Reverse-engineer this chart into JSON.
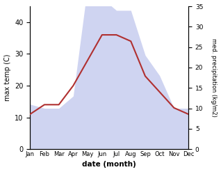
{
  "months": [
    "Jan",
    "Feb",
    "Mar",
    "Apr",
    "May",
    "Jun",
    "Jul",
    "Aug",
    "Sep",
    "Oct",
    "Nov",
    "Dec"
  ],
  "temperature": [
    11,
    14,
    14,
    20,
    28,
    36,
    36,
    34,
    23,
    18,
    13,
    11
  ],
  "precipitation": [
    11,
    10,
    10,
    13,
    40,
    37,
    34,
    34,
    23,
    18,
    10,
    10
  ],
  "temp_color": "#b03030",
  "precip_fill_color": "#b0b8e8",
  "precip_fill_alpha": 0.6,
  "xlabel": "date (month)",
  "ylabel_left": "max temp (C)",
  "ylabel_right": "med. precipitation (kg/m2)",
  "ylim_left": [
    0,
    45
  ],
  "ylim_right": [
    0,
    35
  ],
  "yticks_left": [
    0,
    10,
    20,
    30,
    40
  ],
  "yticks_right": [
    0,
    5,
    10,
    15,
    20,
    25,
    30,
    35
  ],
  "background_color": "#ffffff",
  "fig_width": 3.18,
  "fig_height": 2.47,
  "dpi": 100
}
